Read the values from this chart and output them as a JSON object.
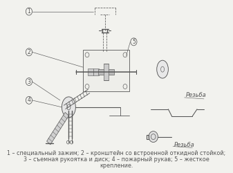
{
  "bg_color": "#f2f2ee",
  "line_color": "#555555",
  "dark_color": "#444444",
  "caption_line1": "1 – специальный зажим; 2 – кронштейн со встроенной откидной стойкой;",
  "caption_line2": "3 – съемная рукоятка и диск; 4 – пожарный рукав; 5 – жесткое",
  "caption_line3": "крепление.",
  "rezba": "Резьба",
  "font_size_caption": 5.8,
  "font_size_label": 6.0
}
